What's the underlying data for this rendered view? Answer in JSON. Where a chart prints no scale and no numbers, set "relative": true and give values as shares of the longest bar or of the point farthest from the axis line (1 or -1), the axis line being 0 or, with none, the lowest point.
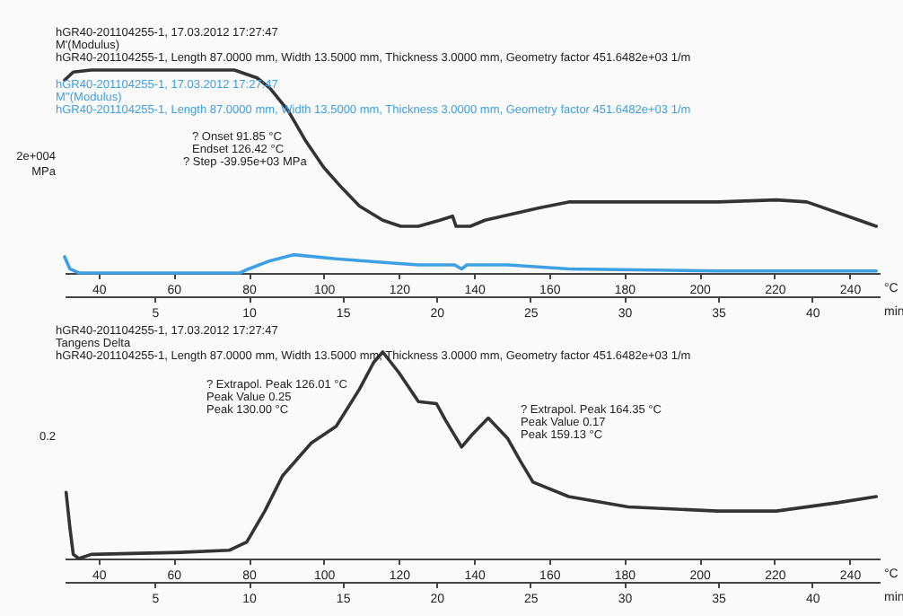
{
  "chart_data": [
    {
      "type": "line",
      "relative": true,
      "xlabel": "°C",
      "xlim": [
        31,
        248
      ],
      "xticks": [
        40,
        60,
        80,
        100,
        120,
        140,
        160,
        180,
        200,
        220,
        240
      ],
      "x2label": "min",
      "x2lim": [
        0.2,
        43.6
      ],
      "x2ticks": [
        5,
        10,
        15,
        20,
        25,
        30,
        35,
        40
      ],
      "ylabel": "2e+004 MPa",
      "annotations": [
        "hGR40-201104255-1, 17.03.2012 17:27:47",
        "M'(Modulus)",
        "hGR40-201104255-1, Length 87.0000 mm, Width 13.5000 mm, Thickness 3.0000 mm, Geometry factor 451.6482e+03 1/m",
        "hGR40-201104255-1, 17.03.2012 17:27:47",
        "M''(Modulus)",
        "hGR40-201104255-1, Length 87.0000 mm, Width 13.5000 mm, Thickness 3.0000 mm, Geometry factor 451.6482e+03 1/m",
        "? Onset   91.85 °C",
        "Endset   126.42 °C",
        "? Step   -39.95e+03 MPa"
      ],
      "series": [
        {
          "color": "#333333",
          "x": [
            31.0,
            33.3,
            38.1,
            52.4,
            66.7,
            76.2,
            82.4,
            85.7,
            90.5,
            95.2,
            100.0,
            104.8,
            109.5,
            115.7,
            120.5,
            125.2,
            130.9,
            134.3,
            135.2,
            139.0,
            142.9,
            150.0,
            157.1,
            165.2,
            181.0,
            204.8,
            220.5,
            228.6,
            239.5,
            247.1
          ],
          "values": [
            0.95,
            0.99,
            1,
            1,
            1,
            1,
            0.96,
            0.91,
            0.8,
            0.65,
            0.52,
            0.42,
            0.33,
            0.26,
            0.23,
            0.23,
            0.26,
            0.28,
            0.23,
            0.23,
            0.26,
            0.29,
            0.32,
            0.35,
            0.35,
            0.35,
            0.36,
            0.35,
            0.28,
            0.23
          ]
        },
        {
          "color": "#3ea0e4",
          "x": [
            31.0,
            32.4,
            34.8,
            77.6,
            80.0,
            85.7,
            91.9,
            103.3,
            117.6,
            125.2,
            134.8,
            136.7,
            138.1,
            149.0,
            165.2,
            204.8,
            247.1
          ],
          "values": [
            0.08,
            0.02,
            0,
            0,
            0.02,
            0.06,
            0.09,
            0.07,
            0.05,
            0.04,
            0.04,
            0.02,
            0.04,
            0.04,
            0.02,
            0.01,
            0.01
          ]
        }
      ]
    },
    {
      "type": "line",
      "relative": true,
      "xlabel": "°C",
      "xlim": [
        31,
        248
      ],
      "xticks": [
        40,
        60,
        80,
        100,
        120,
        140,
        160,
        180,
        200,
        220,
        240
      ],
      "x2label": "min",
      "x2lim": [
        0.2,
        43.6
      ],
      "x2ticks": [
        5,
        10,
        15,
        20,
        25,
        30,
        35,
        40
      ],
      "ylabel": "0.2",
      "annotations": [
        "hGR40-201104255-1, 17.03.2012 17:27:47",
        "Tangens Delta",
        "hGR40-201104255-1, Length 87.0000 mm, Width 13.5000 mm, Thickness 3.0000 mm, Geometry factor 451.6482e+03 1/m",
        "? Extrapol. Peak   126.01 °C",
        "Peak Value   0.25",
        "Peak   130.00 °C",
        "? Extrapol. Peak   164.35 °C",
        "Peak Value   0.17",
        "Peak   159.13 °C"
      ],
      "series": [
        {
          "color": "#333333",
          "x": [
            31.4,
            32.4,
            33.3,
            34.8,
            38.1,
            61.9,
            74.8,
            79.5,
            84.3,
            89.0,
            93.8,
            96.7,
            103.3,
            109.5,
            113.3,
            115.7,
            120.0,
            125.2,
            130.0,
            132.4,
            136.7,
            139.5,
            143.8,
            149.0,
            152.4,
            155.7,
            165.2,
            181.0,
            204.8,
            220.5,
            236.7,
            247.1
          ],
          "values": [
            0.32,
            0.15,
            0.02,
            0,
            0.02,
            0.03,
            0.04,
            0.08,
            0.23,
            0.4,
            0.5,
            0.56,
            0.64,
            0.82,
            0.95,
            1,
            0.9,
            0.76,
            0.75,
            0.67,
            0.54,
            0.6,
            0.68,
            0.58,
            0.47,
            0.37,
            0.3,
            0.25,
            0.23,
            0.23,
            0.27,
            0.3
          ]
        }
      ]
    }
  ]
}
